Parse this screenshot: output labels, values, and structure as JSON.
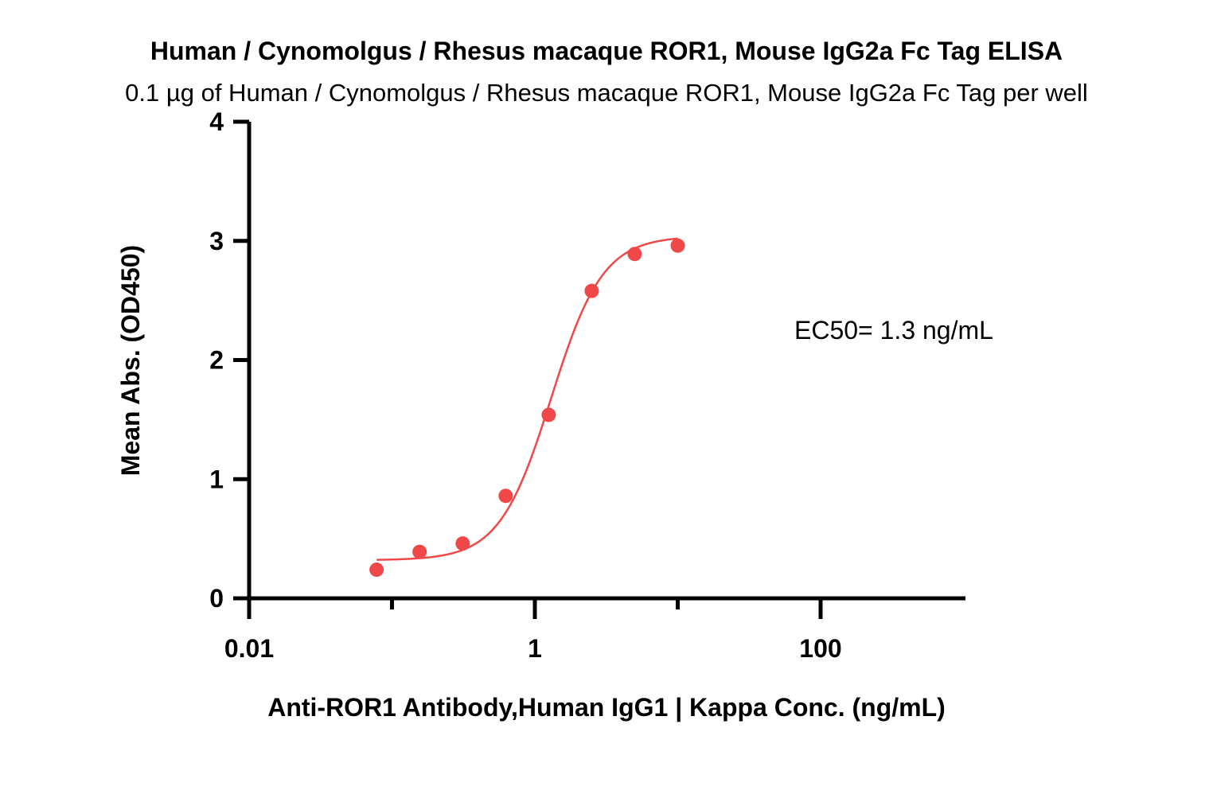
{
  "chart_data": {
    "type": "scatter",
    "title": "Human / Cynomolgus / Rhesus macaque ROR1, Mouse IgG2a Fc Tag ELISA",
    "subtitle": "0.1 µg of Human / Cynomolgus / Rhesus macaque ROR1, Mouse IgG2a Fc Tag per well",
    "xlabel": "Anti-ROR1 Antibody,Human IgG1 | Kappa Conc. (ng/mL)",
    "ylabel": "Mean Abs. (OD450)",
    "x_scale": "log",
    "xlim": [
      0.01,
      1000
    ],
    "ylim": [
      0,
      4
    ],
    "x_ticks": [
      "0.01",
      "1",
      "100"
    ],
    "y_ticks": [
      "0",
      "1",
      "2",
      "3",
      "4"
    ],
    "grid": false,
    "annotation": "EC50= 1.3 ng/mL",
    "color": "#f04848",
    "series": [
      {
        "x": [
          0.078,
          0.156,
          0.3125,
          0.625,
          1.25,
          2.5,
          5,
          10
        ],
        "y": [
          0.24,
          0.39,
          0.46,
          0.86,
          1.54,
          2.58,
          2.89,
          2.96
        ]
      }
    ],
    "fit": {
      "model": "4PL",
      "bottom": 0.32,
      "top": 3.04,
      "ec50": 1.3,
      "hill": 2.4
    }
  }
}
